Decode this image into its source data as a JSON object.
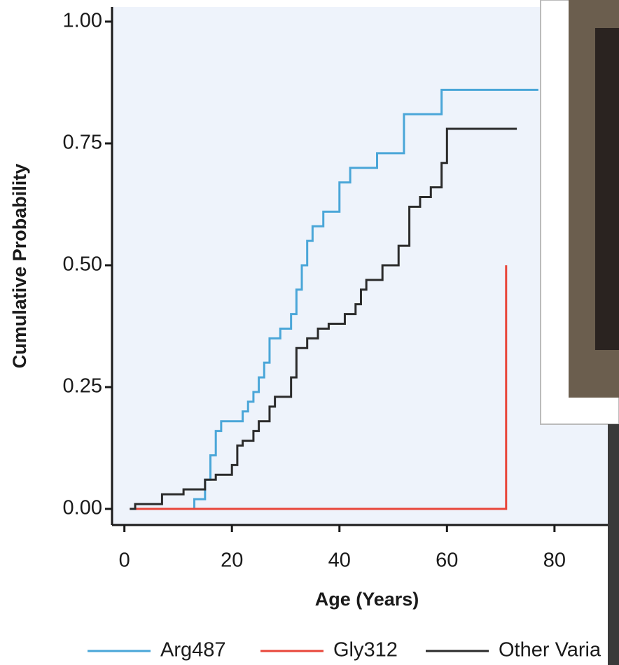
{
  "chart_data": {
    "type": "step",
    "x_label": "Age (Years)",
    "y_label": "Cumulative Probability",
    "xlim": [
      -2.3,
      92
    ],
    "ylim": [
      -0.033,
      1.03
    ],
    "xticks": [
      0,
      20,
      40,
      60,
      80
    ],
    "yticks": [
      {
        "value": 0,
        "label": "0.00"
      },
      {
        "value": 0.25,
        "label": "0.25"
      },
      {
        "value": 0.5,
        "label": "0.50"
      },
      {
        "value": 0.75,
        "label": "0.75"
      },
      {
        "value": 1,
        "label": "1.00"
      }
    ],
    "series": [
      {
        "name": "Arg487",
        "color": "#4aa6d8",
        "x": [
          12,
          13,
          15,
          16,
          17,
          18,
          22,
          23,
          24,
          25,
          26,
          27,
          29,
          31,
          32,
          33,
          34,
          35,
          37,
          40,
          42,
          45,
          47,
          50,
          52,
          59,
          77
        ],
        "values": [
          0,
          0.02,
          0.06,
          0.11,
          0.16,
          0.18,
          0.2,
          0.22,
          0.24,
          0.27,
          0.3,
          0.35,
          0.37,
          0.4,
          0.45,
          0.5,
          0.55,
          0.58,
          0.61,
          0.67,
          0.7,
          0.7,
          0.73,
          0.73,
          0.81,
          0.86,
          0.86
        ]
      },
      {
        "name": "Gly312",
        "color": "#e8463a",
        "x": [
          1,
          71
        ],
        "values": [
          0,
          0.5
        ]
      },
      {
        "name": "Other Varia",
        "color": "#2b2b2b",
        "x": [
          1,
          2,
          7,
          11,
          15,
          17,
          20,
          21,
          22,
          24,
          25,
          27,
          28,
          31,
          32,
          34,
          36,
          38,
          41,
          43,
          44,
          45,
          48,
          51,
          53,
          55,
          57,
          59,
          60,
          73
        ],
        "values": [
          0,
          0.01,
          0.03,
          0.04,
          0.06,
          0.07,
          0.09,
          0.13,
          0.14,
          0.16,
          0.18,
          0.21,
          0.23,
          0.27,
          0.33,
          0.35,
          0.37,
          0.38,
          0.4,
          0.42,
          0.45,
          0.47,
          0.5,
          0.54,
          0.62,
          0.64,
          0.66,
          0.71,
          0.78,
          0.78
        ]
      }
    ]
  }
}
